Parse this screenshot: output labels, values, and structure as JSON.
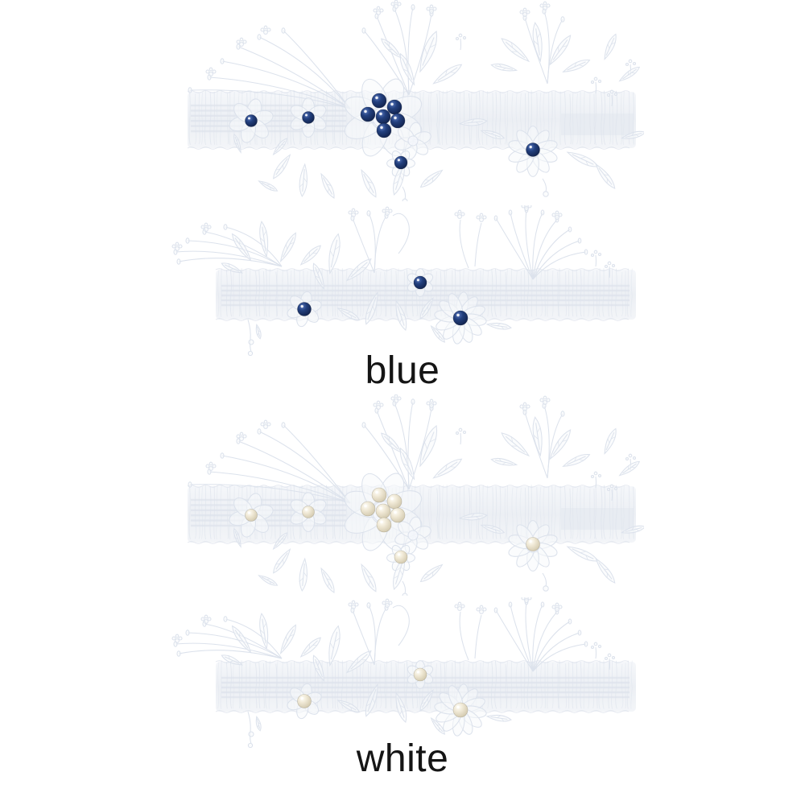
{
  "colors": {
    "background": "#ffffff",
    "lace_stroke": "#dce2ec",
    "lace_fill": "rgba(248,250,252,0.55)",
    "band_mid": "#eceff4",
    "band_edge": "#d9dfe9",
    "label_text": "#151515"
  },
  "product_image": {
    "variants": [
      {
        "id": "blue",
        "label": "blue",
        "pearl": {
          "light": "#5a78bd",
          "base": "#23407e",
          "dark": "#0f1f47",
          "rim": "rgba(10,20,45,0.45)"
        }
      },
      {
        "id": "white",
        "label": "white",
        "pearl": {
          "light": "#fffef8",
          "base": "#f0e9d6",
          "dark": "#cfc5a9",
          "rim": "rgba(125,117,95,0.4)"
        }
      }
    ]
  }
}
